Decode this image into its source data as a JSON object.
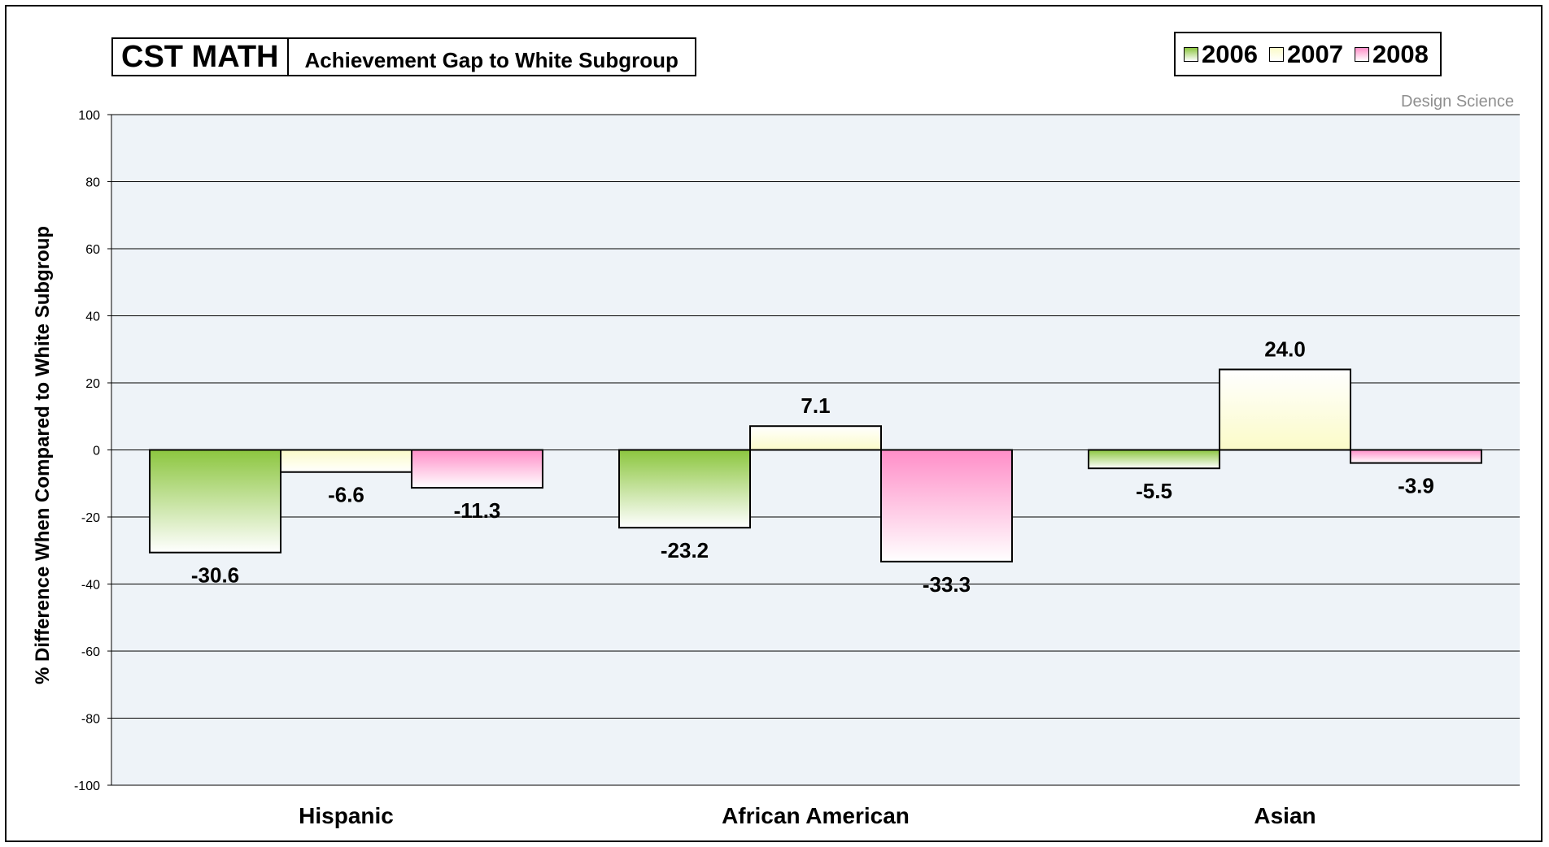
{
  "header": {
    "title": "CST MATH",
    "subtitle": "Achievement Gap to White Subgroup",
    "credit": "Design Science"
  },
  "legend": [
    {
      "label": "2006",
      "color": "#8cc63f"
    },
    {
      "label": "2007",
      "color": "#fbfbc8"
    },
    {
      "label": "2008",
      "color": "#ff8ec8"
    }
  ],
  "chart_data": {
    "type": "bar",
    "title": "CST MATH",
    "subtitle": "Achievement Gap to White Subgroup",
    "xlabel": "",
    "ylabel": "% Difference When Compared to White Subgroup",
    "ylim": [
      -100,
      100
    ],
    "yticks": [
      100,
      80,
      60,
      40,
      20,
      0,
      -20,
      -40,
      -60,
      -80,
      -100
    ],
    "categories": [
      "Hispanic",
      "African American",
      "Asian"
    ],
    "series": [
      {
        "name": "2006",
        "values": [
          -30.6,
          -23.2,
          -5.5
        ],
        "labels": [
          "-30.6",
          "-23.2",
          "-5.5"
        ],
        "color": "#8cc63f"
      },
      {
        "name": "2007",
        "values": [
          -6.6,
          7.1,
          24.0
        ],
        "labels": [
          "-6.6",
          "7.1",
          "24.0"
        ],
        "color": "#fbfbc8"
      },
      {
        "name": "2008",
        "values": [
          -11.3,
          -33.3,
          -3.9
        ],
        "labels": [
          "-11.3",
          "-33.3",
          "-3.9"
        ],
        "color": "#ff8ec8"
      }
    ],
    "grid": true,
    "legend_position": "top-right",
    "plot_background": "#eef3f8"
  }
}
